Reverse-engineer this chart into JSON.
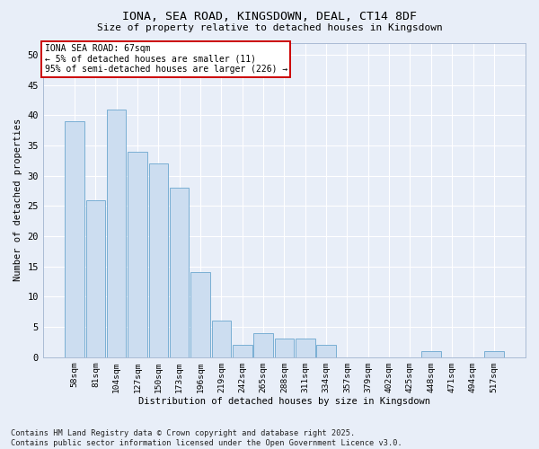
{
  "title": "IONA, SEA ROAD, KINGSDOWN, DEAL, CT14 8DF",
  "subtitle": "Size of property relative to detached houses in Kingsdown",
  "xlabel": "Distribution of detached houses by size in Kingsdown",
  "ylabel": "Number of detached properties",
  "categories": [
    "58sqm",
    "81sqm",
    "104sqm",
    "127sqm",
    "150sqm",
    "173sqm",
    "196sqm",
    "219sqm",
    "242sqm",
    "265sqm",
    "288sqm",
    "311sqm",
    "334sqm",
    "357sqm",
    "379sqm",
    "402sqm",
    "425sqm",
    "448sqm",
    "471sqm",
    "494sqm",
    "517sqm"
  ],
  "values": [
    39,
    26,
    41,
    34,
    32,
    28,
    14,
    6,
    2,
    4,
    3,
    3,
    2,
    0,
    0,
    0,
    0,
    1,
    0,
    0,
    1
  ],
  "bar_color": "#ccddf0",
  "bar_edge_color": "#7aafd4",
  "background_color": "#e8eef8",
  "grid_color": "#ffffff",
  "annotation_line1": "IONA SEA ROAD: 67sqm",
  "annotation_line2": "← 5% of detached houses are smaller (11)",
  "annotation_line3": "95% of semi-detached houses are larger (226) →",
  "annotation_box_color": "#ffffff",
  "annotation_box_edge": "#cc0000",
  "footnote": "Contains HM Land Registry data © Crown copyright and database right 2025.\nContains public sector information licensed under the Open Government Licence v3.0.",
  "ylim": [
    0,
    52
  ],
  "yticks": [
    0,
    5,
    10,
    15,
    20,
    25,
    30,
    35,
    40,
    45,
    50
  ]
}
